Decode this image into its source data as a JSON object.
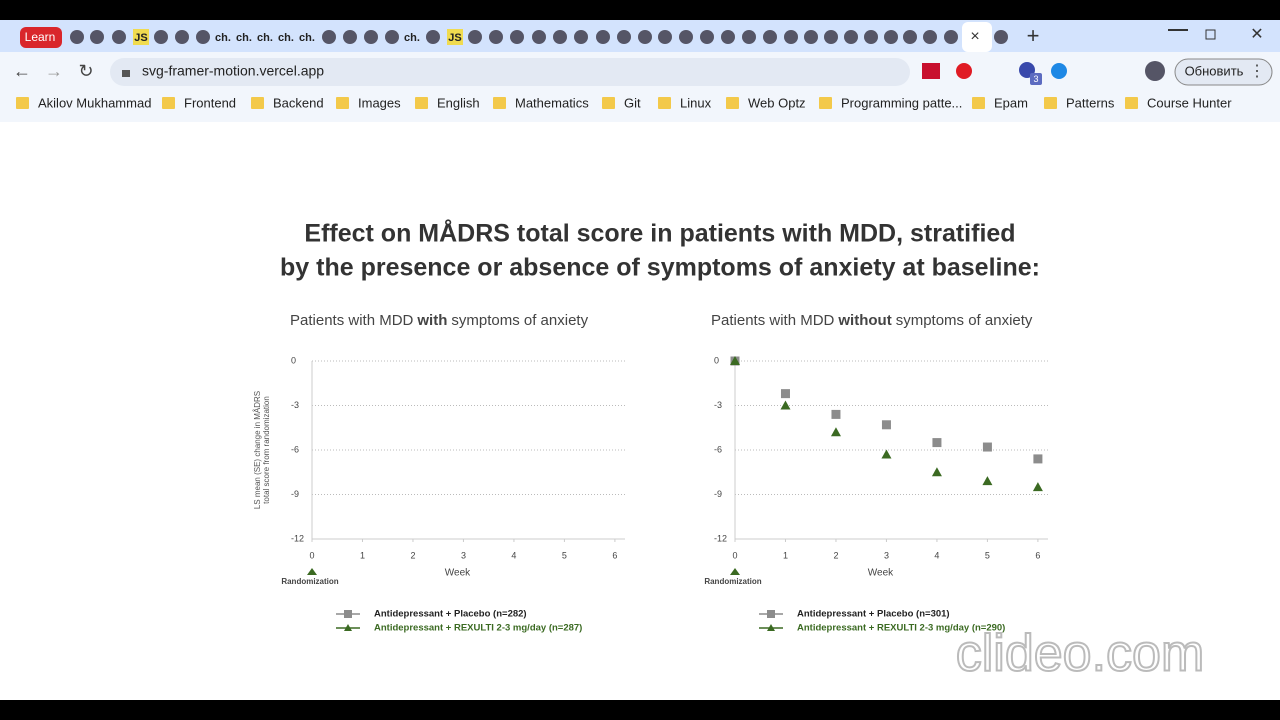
{
  "browser": {
    "tabs": [
      "Learn",
      "JS",
      "ch.",
      "ch.",
      "ch.",
      "ch.",
      "ch.",
      "ch.",
      "JS"
    ],
    "url": "svg-framer-motion.vercel.app",
    "extension_badge": "3",
    "update_button": "Обновить",
    "bookmarks": [
      "Akilov Mukhammad",
      "Frontend",
      "Backend",
      "Images",
      "English",
      "Mathematics",
      "Git",
      "Linux",
      "Web Optz",
      "Programming patte...",
      "Epam",
      "Patterns",
      "Course Hunter"
    ]
  },
  "page": {
    "title": [
      "Effect on MÅDRS total score in patients with MDD, stratified",
      "by the presence or absence of symptoms of anxiety at baseline:"
    ]
  },
  "chart_data": [
    {
      "type": "scatter",
      "subtitle": [
        "Patients with MDD",
        "with",
        "symptoms of anxiety"
      ],
      "ylabel": [
        "LS mean (SE) change in MÅDRS",
        "total score from randomization"
      ],
      "xlabel": "Week",
      "annotation": "Randomization",
      "x": [
        0,
        1,
        2,
        3,
        4,
        5,
        6
      ],
      "xlim": [
        0,
        6.2
      ],
      "xticks": [
        0,
        1,
        2,
        3,
        4,
        5,
        6
      ],
      "ylim": [
        -12,
        0
      ],
      "yticks": [
        0,
        -3,
        -6,
        -9,
        -12
      ],
      "grid": true,
      "series": [
        {
          "name": "Antidepressant + Placebo (n=282)",
          "color": "#8c8c8c",
          "marker": "square",
          "values": [
            null,
            null,
            null,
            null,
            null,
            null,
            null
          ]
        },
        {
          "name": "Antidepressant + REXULTI 2-3 mg/day (n=287)",
          "color": "#3b6a22",
          "marker": "triangle",
          "values": [
            null,
            null,
            null,
            null,
            null,
            null,
            null
          ]
        }
      ]
    },
    {
      "type": "scatter",
      "subtitle": [
        "Patients with MDD",
        "without",
        "symptoms of anxiety"
      ],
      "xlabel": "Week",
      "annotation": "Randomization",
      "x": [
        0,
        1,
        2,
        3,
        4,
        5,
        6
      ],
      "xlim": [
        0,
        6.2
      ],
      "xticks": [
        0,
        1,
        2,
        3,
        4,
        5,
        6
      ],
      "ylim": [
        -12,
        0
      ],
      "yticks": [
        0,
        -3,
        -6,
        -9,
        -12
      ],
      "grid": true,
      "series": [
        {
          "name": "Antidepressant + Placebo (n=301)",
          "color": "#8c8c8c",
          "marker": "square",
          "values": [
            0,
            -2.2,
            -3.6,
            -4.3,
            -5.5,
            -5.8,
            -6.6
          ]
        },
        {
          "name": "Antidepressant + REXULTI 2-3 mg/day (n=290)",
          "color": "#3b6a22",
          "marker": "triangle",
          "values": [
            0,
            -3.0,
            -4.8,
            -6.3,
            -7.5,
            -8.1,
            -8.5
          ]
        }
      ]
    }
  ],
  "watermark": "clideo.com"
}
